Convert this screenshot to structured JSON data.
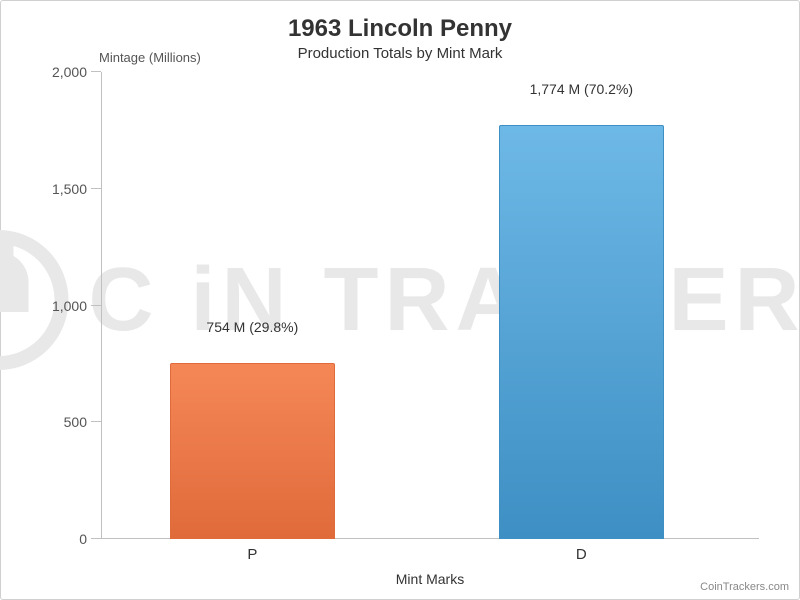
{
  "watermark_text": "C   iN TRACKERS",
  "chart": {
    "type": "bar",
    "title": "1963 Lincoln Penny",
    "subtitle": "Production Totals by Mint Mark",
    "title_fontsize": 24,
    "subtitle_fontsize": 15,
    "y_axis_label": "Mintage (Millions)",
    "x_axis_label": "Mint Marks",
    "ylim": [
      0,
      2000
    ],
    "ytick_step": 500,
    "ytick_labels": [
      "0",
      "500",
      "1,000",
      "1,500",
      "2,000"
    ],
    "categories": [
      "P",
      "D"
    ],
    "values": [
      754,
      1774
    ],
    "value_labels": [
      "754 M (29.8%)",
      "1,774 M (70.2%)"
    ],
    "bar_fill_colors": [
      "#f58757",
      "#6db8e6"
    ],
    "bar_border_colors": [
      "#e06a3a",
      "#3e8fc4"
    ],
    "bar_width_pct": 25,
    "bar_positions_pct": [
      23,
      73
    ],
    "background_color": "#ffffff",
    "axis_color": "#c0c0c0",
    "label_color": "#333333"
  },
  "credit": "CoinTrackers.com"
}
